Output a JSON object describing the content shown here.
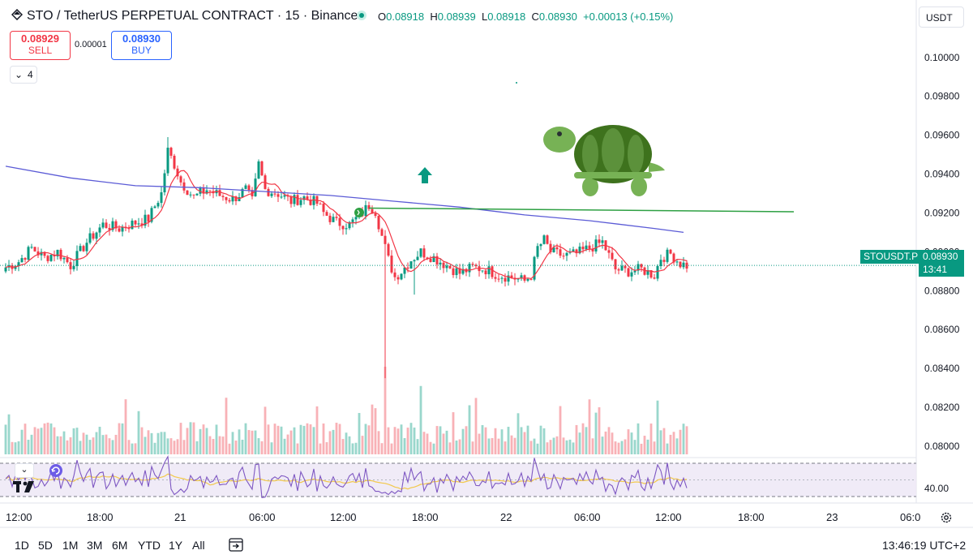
{
  "header": {
    "symbol_title": "STO / TetherUS PERPETUAL CONTRACT · 15 · Binance",
    "ohlc": {
      "open_key": "O",
      "open": "0.08918",
      "high_key": "H",
      "high": "0.08939",
      "low_key": "L",
      "low": "0.08918",
      "close_key": "C",
      "close": "0.08930",
      "change": "+0.00013 (+0.15%)"
    }
  },
  "trade": {
    "sell_price": "0.08929",
    "sell_label": "SELL",
    "spread": "0.00001",
    "buy_price": "0.08930",
    "buy_label": "BUY"
  },
  "indicators_toggle": "4",
  "currency": "USDT",
  "price_tag": {
    "symbol": "STOUSDT.P",
    "price": "0.08930",
    "countdown": "13:41"
  },
  "rsi_value": "40.00",
  "timeframes": [
    "1D",
    "5D",
    "1M",
    "3M",
    "6M",
    "YTD",
    "1Y",
    "All"
  ],
  "clock": "13:46:19 UTC+2",
  "colors": {
    "up": "#089981",
    "down": "#f23645",
    "ma_slow": "#5b5bd6",
    "ma_fast": "#f23645",
    "trendline": "#2ea043",
    "rsi": "#7e57c2",
    "rsi_ma": "#f2c94c"
  },
  "chart_data": {
    "type": "candlestick",
    "interval": "15m",
    "y_axis": {
      "ticks": [
        "0.10000",
        "0.09800",
        "0.09600",
        "0.09400",
        "0.09200",
        "0.09000",
        "0.08800",
        "0.08600",
        "0.08400",
        "0.08200",
        "0.08000"
      ],
      "ylim": [
        0.0795,
        0.1012
      ]
    },
    "x_axis": {
      "ticks": [
        "12:00",
        "18:00",
        "21",
        "06:00",
        "12:00",
        "18:00",
        "22",
        "06:00",
        "12:00",
        "18:00",
        "23",
        "06:0"
      ]
    },
    "close_path": [
      [
        0,
        0.0892
      ],
      [
        4,
        0.0895
      ],
      [
        8,
        0.0902
      ],
      [
        12,
        0.0897
      ],
      [
        16,
        0.09
      ],
      [
        20,
        0.0893
      ],
      [
        25,
        0.0905
      ],
      [
        30,
        0.0914
      ],
      [
        35,
        0.0912
      ],
      [
        40,
        0.0915
      ],
      [
        44,
        0.0917
      ],
      [
        48,
        0.093
      ],
      [
        50,
        0.0952
      ],
      [
        52,
        0.0945
      ],
      [
        54,
        0.0936
      ],
      [
        58,
        0.0928
      ],
      [
        62,
        0.0932
      ],
      [
        66,
        0.0929
      ],
      [
        70,
        0.0927
      ],
      [
        74,
        0.0932
      ],
      [
        76,
        0.0926
      ],
      [
        78,
        0.0945
      ],
      [
        80,
        0.0932
      ],
      [
        84,
        0.093
      ],
      [
        88,
        0.0926
      ],
      [
        92,
        0.0928
      ],
      [
        96,
        0.0925
      ],
      [
        98,
        0.092
      ],
      [
        102,
        0.0915
      ],
      [
        106,
        0.0914
      ],
      [
        110,
        0.092
      ],
      [
        112,
        0.0924
      ],
      [
        114,
        0.0921
      ],
      [
        116,
        0.0908
      ],
      [
        118,
        0.0896
      ],
      [
        120,
        0.0887
      ],
      [
        122,
        0.089
      ],
      [
        125,
        0.0896
      ],
      [
        128,
        0.09
      ],
      [
        132,
        0.0897
      ],
      [
        136,
        0.0893
      ],
      [
        140,
        0.0889
      ],
      [
        144,
        0.0892
      ],
      [
        148,
        0.0891
      ],
      [
        152,
        0.0888
      ],
      [
        156,
        0.0887
      ],
      [
        160,
        0.0885
      ],
      [
        162,
        0.0888
      ],
      [
        164,
        0.0902
      ],
      [
        166,
        0.0906
      ],
      [
        168,
        0.09
      ],
      [
        172,
        0.0898
      ],
      [
        176,
        0.0899
      ],
      [
        180,
        0.0902
      ],
      [
        184,
        0.0905
      ],
      [
        186,
        0.0898
      ],
      [
        188,
        0.0891
      ],
      [
        192,
        0.089
      ],
      [
        196,
        0.0891
      ],
      [
        200,
        0.0888
      ],
      [
        202,
        0.0897
      ],
      [
        205,
        0.0899
      ],
      [
        208,
        0.0894
      ],
      [
        210,
        0.0893
      ]
    ],
    "extremes": [
      {
        "i": 117,
        "low": 0.0835,
        "note": "long lower wick"
      },
      {
        "i": 126,
        "low": 0.0878
      },
      {
        "i": 50,
        "high": 0.0959
      }
    ],
    "ma_slow": [
      [
        0,
        0.0944
      ],
      [
        20,
        0.0938
      ],
      [
        40,
        0.0934
      ],
      [
        60,
        0.0933
      ],
      [
        80,
        0.0931
      ],
      [
        100,
        0.0929
      ],
      [
        120,
        0.0926
      ],
      [
        140,
        0.0923
      ],
      [
        160,
        0.0919
      ],
      [
        180,
        0.0916
      ],
      [
        200,
        0.0912
      ],
      [
        209,
        0.091
      ]
    ],
    "trendline": [
      [
        112,
        0.09225
      ],
      [
        243,
        0.09206
      ]
    ],
    "volume_scale_max": 1.0,
    "volume_spikes": [
      {
        "i": 117,
        "v": 1.0
      },
      {
        "i": 128,
        "v": 0.78
      }
    ],
    "rsi": {
      "value": 40.0,
      "band_upper": 70,
      "band_lower": 30
    }
  }
}
